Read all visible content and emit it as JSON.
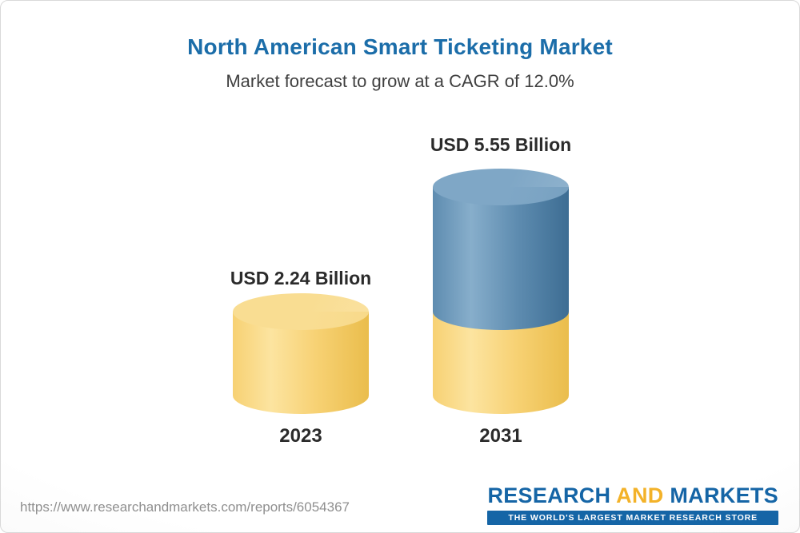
{
  "header": {
    "title": "North American Smart Ticketing Market",
    "subtitle": "Market forecast to grow at a CAGR of 12.0%"
  },
  "chart_data": {
    "type": "bar",
    "subtype": "3d-cylinder",
    "title": "North American Smart Ticketing Market",
    "subtitle": "Market forecast to grow at a CAGR of 12.0%",
    "unit": "USD Billion",
    "cagr": "12.0%",
    "categories": [
      "2023",
      "2031"
    ],
    "values": [
      2.24,
      5.55
    ],
    "value_labels": [
      "USD 2.24 Billion",
      "USD 5.55 Billion"
    ],
    "bars": [
      {
        "category": "2023",
        "total": 2.24,
        "segments": [
          {
            "name": "2023-value",
            "value": 2.24,
            "color": "yellow"
          }
        ]
      },
      {
        "category": "2031",
        "total": 5.55,
        "segments": [
          {
            "name": "base-2023-value",
            "value": 2.24,
            "color": "yellow"
          },
          {
            "name": "forecast-growth",
            "value": 3.31,
            "color": "blue"
          }
        ]
      }
    ],
    "palette": {
      "yellow": {
        "cap": "#f9dd92",
        "light": "#fce4a0",
        "mid": "#f7d173",
        "dark": "#eabd4c"
      },
      "blue": {
        "cap": "#7fa7c6",
        "light": "#87aecb",
        "mid": "#5e8cb0",
        "dark": "#3d6d93"
      }
    },
    "layout": {
      "grid": false,
      "legend": "none",
      "baseline_categories_below": true
    }
  },
  "footer": {
    "url": "https://www.researchandmarkets.com/reports/6054367",
    "logo": {
      "research": "RESEARCH",
      "and": "AND",
      "markets": "MARKETS",
      "tagline": "THE WORLD'S LARGEST MARKET RESEARCH STORE"
    }
  },
  "colors": {
    "title_blue": "#1b6da9",
    "logo_blue": "#1565a6",
    "logo_yellow": "#f3b229",
    "tagline_bg": "#1565a6"
  }
}
